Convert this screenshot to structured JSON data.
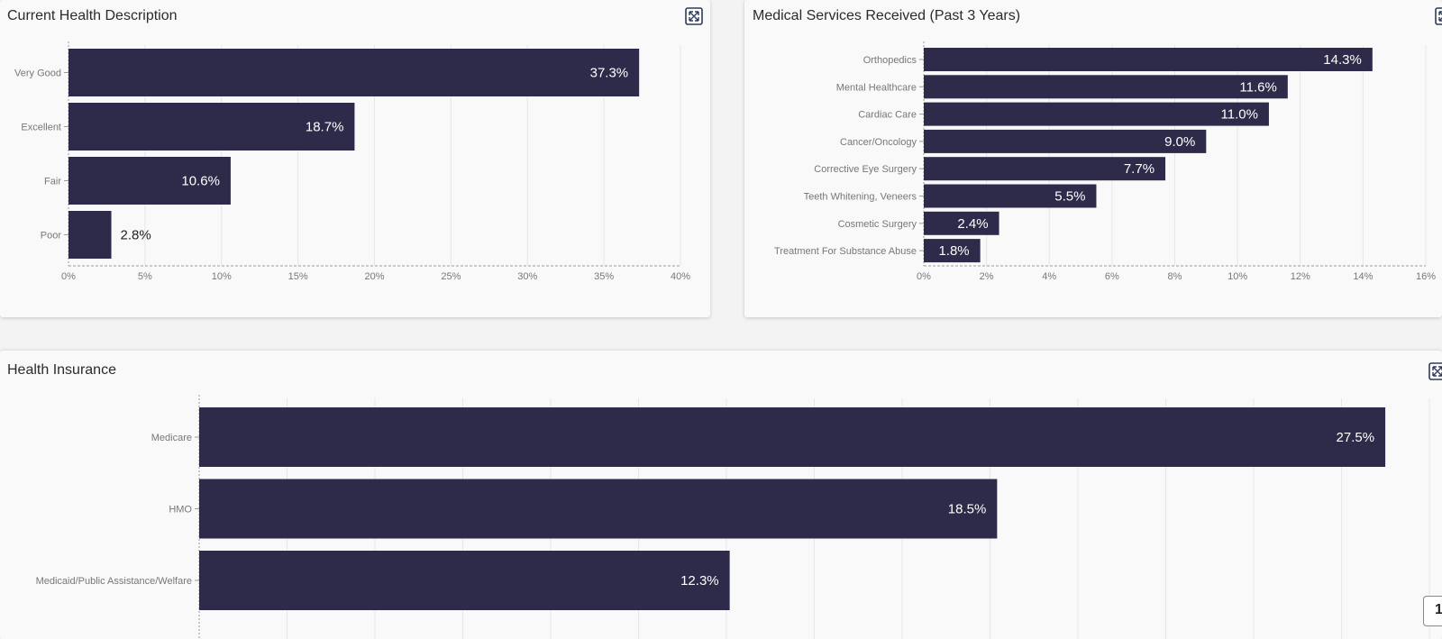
{
  "colors": {
    "bar": "#2e2a4a",
    "grid": "#e6e6e6",
    "axis": "#9a9a9a",
    "tick_text": "#777777",
    "label_inside": "#ffffff",
    "label_outside": "#222222"
  },
  "icons": {
    "expand": "expand-icon"
  },
  "panels": [
    {
      "title": "Current Health Description",
      "chart_data": {
        "type": "bar",
        "orientation": "horizontal",
        "categories": [
          "Very Good",
          "Excellent",
          "Fair",
          "Poor"
        ],
        "values": [
          37.3,
          18.7,
          10.6,
          2.8
        ],
        "data_labels": [
          "37.3%",
          "18.7%",
          "10.6%",
          "2.8%"
        ],
        "xlim": [
          0,
          40
        ],
        "xticks": [
          "0%",
          "5%",
          "10%",
          "15%",
          "20%",
          "25%",
          "30%",
          "35%",
          "40%"
        ],
        "grid": true
      }
    },
    {
      "title": "Medical Services Received (Past 3 Years)",
      "chart_data": {
        "type": "bar",
        "orientation": "horizontal",
        "categories": [
          "Orthopedics",
          "Mental Healthcare",
          "Cardiac Care",
          "Cancer/Oncology",
          "Corrective Eye Surgery",
          "Teeth Whitening, Veneers",
          "Cosmetic Surgery",
          "Treatment For Substance Abuse"
        ],
        "values": [
          14.3,
          11.6,
          11.0,
          9.0,
          7.7,
          5.5,
          2.4,
          1.8
        ],
        "data_labels": [
          "14.3%",
          "11.6%",
          "11.0%",
          "9.0%",
          "7.7%",
          "5.5%",
          "2.4%",
          "1.8%"
        ],
        "xlim": [
          0,
          16
        ],
        "xticks": [
          "0%",
          "2%",
          "4%",
          "6%",
          "8%",
          "10%",
          "12%",
          "14%",
          "16%"
        ],
        "grid": true
      }
    },
    {
      "title": "Health Insurance",
      "chart_data": {
        "type": "bar",
        "orientation": "horizontal",
        "categories": [
          "Medicare",
          "HMO",
          "Medicaid/Public Assistance/Welfare"
        ],
        "values": [
          27.5,
          18.5,
          12.3
        ],
        "data_labels": [
          "27.5%",
          "18.5%",
          "12.3%"
        ],
        "xlim": [
          0,
          28
        ],
        "xticks": [],
        "grid": true
      }
    }
  ],
  "page_badge": "1"
}
